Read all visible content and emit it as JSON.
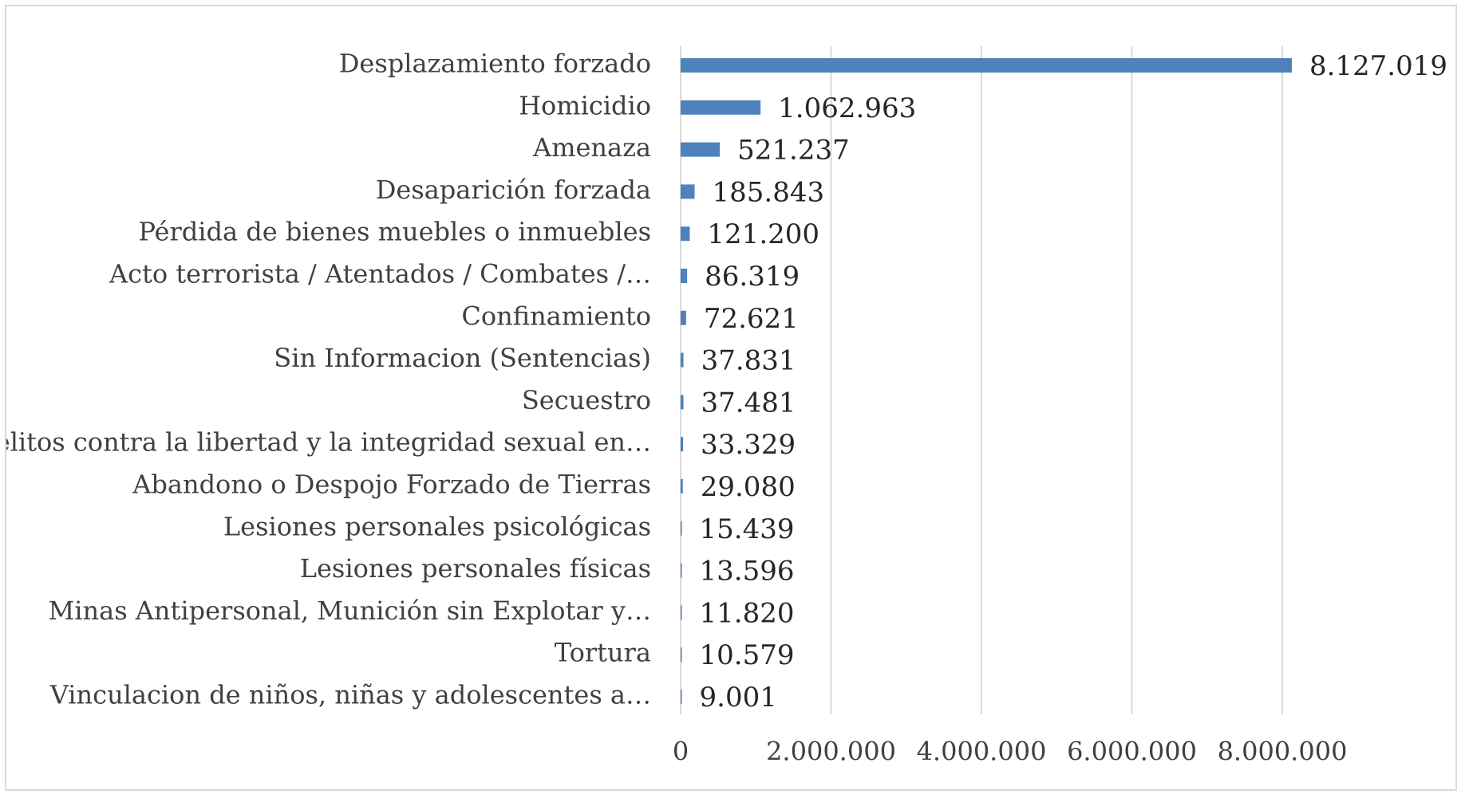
{
  "chart_data": {
    "type": "bar",
    "orientation": "horizontal",
    "categories": [
      "Desplazamiento forzado",
      "Homicidio",
      "Amenaza",
      "Desaparición forzada",
      "Pérdida de bienes muebles o inmuebles",
      "Acto terrorista / Atentados / Combates /…",
      "Confinamiento",
      "Sin Informacion (Sentencias)",
      "Secuestro",
      "Delitos contra la libertad y la integridad sexual en…",
      "Abandono o Despojo Forzado de Tierras",
      "Lesiones personales psicológicas",
      "Lesiones personales físicas",
      "Minas Antipersonal, Munición sin Explotar y…",
      "Tortura",
      "Vinculacion de niños, niñas y adolescentes a…"
    ],
    "values": [
      8127019,
      1062963,
      521237,
      185843,
      121200,
      86319,
      72621,
      37831,
      37481,
      33329,
      29080,
      15439,
      13596,
      11820,
      10579,
      9001
    ],
    "value_labels": [
      "8.127.019",
      "1.062.963",
      "521.237",
      "185.843",
      "121.200",
      "86.319",
      "72.621",
      "37.831",
      "37.481",
      "33.329",
      "29.080",
      "15.439",
      "13.596",
      "11.820",
      "10.579",
      "9.001"
    ],
    "xlim": [
      0,
      8000000
    ],
    "x_ticks": [
      0,
      2000000,
      4000000,
      6000000,
      8000000
    ],
    "x_tick_labels": [
      "0",
      "2.000.000",
      "4.000.000",
      "6.000.000",
      "8.000.000"
    ],
    "grid": "vertical",
    "legend": "none",
    "bar_color": "#4f81bd",
    "grid_color": "#d9d9d9",
    "title": "",
    "xlabel": "",
    "ylabel": ""
  }
}
